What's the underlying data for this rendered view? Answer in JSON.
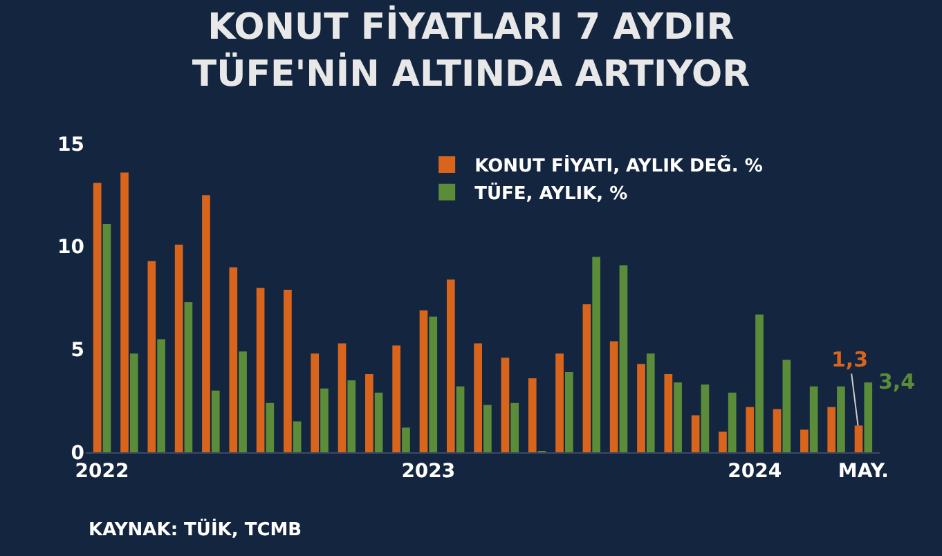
{
  "chart_data": {
    "type": "bar",
    "title": "KONUT FİYATLARI 7 AYDIR\nTÜFE'NİN ALTINDA ARTIYOR",
    "categories": [
      "2022",
      null,
      null,
      null,
      null,
      null,
      null,
      null,
      null,
      null,
      null,
      null,
      "2023",
      null,
      null,
      null,
      null,
      null,
      null,
      null,
      null,
      null,
      null,
      null,
      "2024",
      null,
      null,
      null,
      "MAY."
    ],
    "series": [
      {
        "name": "KONUT FİYATI, AYLIK DEĞ. %",
        "color": "#d9651c",
        "values": [
          13.1,
          13.6,
          9.3,
          10.1,
          12.5,
          9.0,
          8.0,
          7.9,
          4.8,
          5.3,
          3.8,
          5.2,
          6.9,
          8.4,
          5.3,
          4.6,
          3.6,
          4.8,
          7.2,
          5.4,
          4.3,
          3.8,
          1.8,
          1.0,
          2.2,
          2.1,
          1.1,
          2.2,
          1.3
        ],
        "value_labels": [
          null,
          null,
          null,
          null,
          null,
          null,
          null,
          null,
          null,
          null,
          null,
          null,
          null,
          null,
          null,
          null,
          null,
          null,
          null,
          null,
          null,
          null,
          null,
          null,
          null,
          null,
          null,
          null,
          "1,3"
        ]
      },
      {
        "name": "TÜFE, AYLIK, %",
        "color": "#5b8c3a",
        "values": [
          11.1,
          4.8,
          5.5,
          7.3,
          3.0,
          4.9,
          2.4,
          1.5,
          3.1,
          3.5,
          2.9,
          1.2,
          6.6,
          3.2,
          2.3,
          2.4,
          0.04,
          3.9,
          9.5,
          9.1,
          4.8,
          3.4,
          3.3,
          2.9,
          6.7,
          4.5,
          3.2,
          3.2,
          3.4
        ],
        "value_labels": [
          null,
          null,
          null,
          null,
          null,
          null,
          null,
          null,
          null,
          null,
          null,
          null,
          null,
          null,
          null,
          null,
          null,
          null,
          null,
          null,
          null,
          null,
          null,
          null,
          null,
          null,
          null,
          null,
          "3,4"
        ]
      }
    ],
    "ylim": [
      0,
      15
    ],
    "yticks": [
      0,
      5,
      10,
      15
    ],
    "grid": false,
    "legend": "top",
    "annotations": [
      "KAYNAK: TÜİK, TCMB"
    ]
  }
}
